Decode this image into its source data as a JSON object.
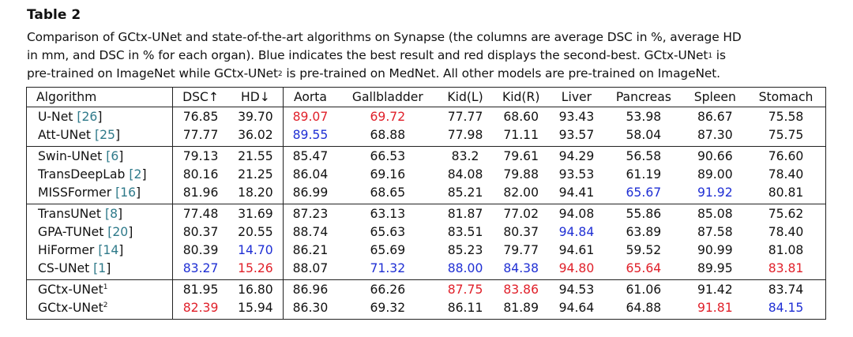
{
  "title": "Table 2",
  "caption": {
    "line1": "Comparison of GCtx-UNet and state-of-the-art algorithms on Synapse (the columns are average DSC in %, average HD",
    "line2_a": "in mm, and DSC in % for each organ). Blue indicates the best result and red displays the second-best. GCtx-UNet",
    "line2_sup": "1",
    "line2_b": " is",
    "line3_a": "pre-trained on ImageNet while GCtx-UNet",
    "line3_sup": "2",
    "line3_b": " is pre-trained on MedNet. All other models are pre-trained on ImageNet."
  },
  "colors": {
    "best": "#1f2fd4",
    "second": "#e0202a",
    "ref": "#2f7a8a"
  },
  "table": {
    "headers": [
      "Algorithm",
      "DSC↑",
      "HD↓",
      "Aorta",
      "Gallbladder",
      "Kid(L)",
      "Kid(R)",
      "Liver",
      "Pancreas",
      "Spleen",
      "Stomach"
    ],
    "groups": [
      [
        {
          "name": "U-Net",
          "ref": "26",
          "sup": "",
          "values": [
            "76.85",
            "39.70",
            "89.07",
            "69.72",
            "77.77",
            "68.60",
            "93.43",
            "53.98",
            "86.67",
            "75.58"
          ],
          "marks": [
            "",
            "",
            "second",
            "second",
            "",
            "",
            "",
            "",
            "",
            ""
          ]
        },
        {
          "name": "Att-UNet",
          "ref": "25",
          "sup": "",
          "values": [
            "77.77",
            "36.02",
            "89.55",
            "68.88",
            "77.98",
            "71.11",
            "93.57",
            "58.04",
            "87.30",
            "75.75"
          ],
          "marks": [
            "",
            "",
            "best",
            "",
            "",
            "",
            "",
            "",
            "",
            ""
          ]
        }
      ],
      [
        {
          "name": "Swin-UNet",
          "ref": "6",
          "sup": "",
          "values": [
            "79.13",
            "21.55",
            "85.47",
            "66.53",
            "83.2",
            "79.61",
            "94.29",
            "56.58",
            "90.66",
            "76.60"
          ],
          "marks": [
            "",
            "",
            "",
            "",
            "",
            "",
            "",
            "",
            "",
            ""
          ]
        },
        {
          "name": "TransDeepLab",
          "ref": "2",
          "sup": "",
          "values": [
            "80.16",
            "21.25",
            "86.04",
            "69.16",
            "84.08",
            "79.88",
            "93.53",
            "61.19",
            "89.00",
            "78.40"
          ],
          "marks": [
            "",
            "",
            "",
            "",
            "",
            "",
            "",
            "",
            "",
            ""
          ]
        },
        {
          "name": "MISSFormer",
          "ref": "16",
          "sup": "",
          "values": [
            "81.96",
            "18.20",
            "86.99",
            "68.65",
            "85.21",
            "82.00",
            "94.41",
            "65.67",
            "91.92",
            "80.81"
          ],
          "marks": [
            "",
            "",
            "",
            "",
            "",
            "",
            "",
            "best",
            "best",
            ""
          ]
        }
      ],
      [
        {
          "name": "TransUNet",
          "ref": "8",
          "sup": "",
          "values": [
            "77.48",
            "31.69",
            "87.23",
            "63.13",
            "81.87",
            "77.02",
            "94.08",
            "55.86",
            "85.08",
            "75.62"
          ],
          "marks": [
            "",
            "",
            "",
            "",
            "",
            "",
            "",
            "",
            "",
            ""
          ]
        },
        {
          "name": "GPA-TUNet",
          "ref": "20",
          "sup": "",
          "values": [
            "80.37",
            "20.55",
            "88.74",
            "65.63",
            "83.51",
            "80.37",
            "94.84",
            "63.89",
            "87.58",
            "78.40"
          ],
          "marks": [
            "",
            "",
            "",
            "",
            "",
            "",
            "best",
            "",
            "",
            ""
          ]
        },
        {
          "name": "HiFormer",
          "ref": "14",
          "sup": "",
          "values": [
            "80.39",
            "14.70",
            "86.21",
            "65.69",
            "85.23",
            "79.77",
            "94.61",
            "59.52",
            "90.99",
            "81.08"
          ],
          "marks": [
            "",
            "best",
            "",
            "",
            "",
            "",
            "",
            "",
            "",
            ""
          ]
        },
        {
          "name": "CS-UNet",
          "ref": "1",
          "sup": "",
          "values": [
            "83.27",
            "15.26",
            "88.07",
            "71.32",
            "88.00",
            "84.38",
            "94.80",
            "65.64",
            "89.95",
            "83.81"
          ],
          "marks": [
            "best",
            "second",
            "",
            "best",
            "best",
            "best",
            "second",
            "second",
            "",
            "second"
          ]
        }
      ],
      [
        {
          "name": "GCtx-UNet",
          "ref": "",
          "sup": "1",
          "values": [
            "81.95",
            "16.80",
            "86.96",
            "66.26",
            "87.75",
            "83.86",
            "94.53",
            "61.06",
            "91.42",
            "83.74"
          ],
          "marks": [
            "",
            "",
            "",
            "",
            "second",
            "second",
            "",
            "",
            "",
            ""
          ]
        },
        {
          "name": "GCtx-UNet",
          "ref": "",
          "sup": "2",
          "values": [
            "82.39",
            "15.94",
            "86.30",
            "69.32",
            "86.11",
            "81.89",
            "94.64",
            "64.88",
            "91.81",
            "84.15"
          ],
          "marks": [
            "second",
            "",
            "",
            "",
            "",
            "",
            "",
            "",
            "second",
            "best"
          ]
        }
      ]
    ]
  }
}
